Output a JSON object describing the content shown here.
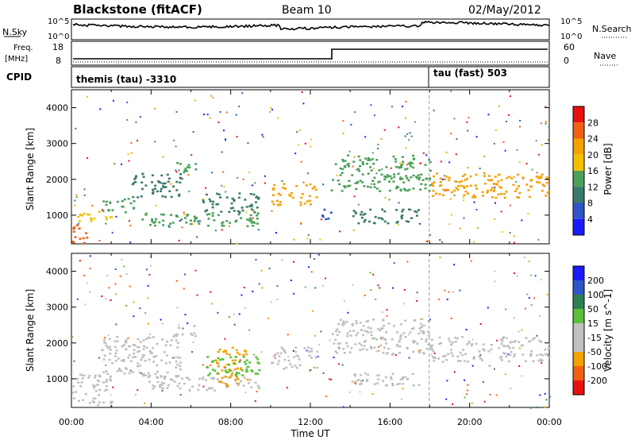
{
  "header": {
    "station": "Blackstone (fitACF)",
    "beam": "Beam 10",
    "date": "02/May/2012"
  },
  "top_panel": {
    "left_label": "N.Sky",
    "right_label": "N.Search",
    "left_ticks": [
      "10^5",
      "10^0"
    ],
    "right_ticks": [
      "10^5",
      "10^0"
    ]
  },
  "freq_panel": {
    "left_label_line1": "Freq.",
    "left_label_line2": "[MHz]",
    "right_label": "Nave",
    "left_ticks": [
      "18",
      "8"
    ],
    "right_ticks": [
      "60",
      "0"
    ]
  },
  "cpid": {
    "label": "CPID",
    "mode1": "themis (tau) -3310",
    "mode2": "tau (fast) 503"
  },
  "colors": {
    "power_scale": [
      "#1a1aff",
      "#2f55c8",
      "#3a7a6a",
      "#4da05a",
      "#f2c200",
      "#f5a000",
      "#f06010",
      "#e81010"
    ],
    "velocity_scale": [
      "#1a1aff",
      "#2f55c8",
      "#2e8050",
      "#5cc03a",
      "#c0c0c0",
      "#c0c0c0",
      "#f5a000",
      "#f06010",
      "#e81010"
    ]
  },
  "chart_data": [
    {
      "type": "line",
      "name": "sky-noise",
      "x": [
        0,
        1,
        2,
        3,
        4,
        5,
        6,
        7,
        8,
        9,
        10,
        11,
        12,
        13,
        14,
        15,
        16,
        17,
        18,
        19,
        20,
        21,
        22,
        23,
        24
      ],
      "y_label_scale": "log",
      "xlim": [
        0,
        24
      ]
    },
    {
      "type": "heatmap",
      "title": "",
      "xlabel": "Time UT",
      "ylabel": "Slant Range [km]",
      "xlim": [
        0,
        24
      ],
      "ylim": [
        200,
        4500
      ],
      "x_tick_labels": [
        "00:00",
        "04:00",
        "08:00",
        "12:00",
        "16:00",
        "20:00",
        "00:00"
      ],
      "y_tick_labels": [
        "1000",
        "2000",
        "3000",
        "4000"
      ],
      "colorbar_label": "Power [dB]",
      "colorbar_ticks": [
        "28",
        "24",
        "20",
        "16",
        "12",
        "8",
        "4"
      ],
      "regions": [
        {
          "t0": 0.0,
          "t1": 0.8,
          "r0": 250,
          "r1": 800,
          "level": 28
        },
        {
          "t0": 0.0,
          "t1": 2.0,
          "r0": 850,
          "r1": 1150,
          "level": 20
        },
        {
          "t0": 1.5,
          "t1": 3.2,
          "r0": 1100,
          "r1": 1500,
          "level": 16
        },
        {
          "t0": 3.0,
          "t1": 5.5,
          "r0": 1500,
          "r1": 2200,
          "level": 12
        },
        {
          "t0": 5.0,
          "t1": 6.3,
          "r0": 2200,
          "r1": 2500,
          "level": 16
        },
        {
          "t0": 3.5,
          "t1": 9.5,
          "r0": 700,
          "r1": 1100,
          "level": 16
        },
        {
          "t0": 6.5,
          "t1": 9.5,
          "r0": 1100,
          "r1": 1650,
          "level": 12
        },
        {
          "t0": 10.0,
          "t1": 12.3,
          "r0": 1300,
          "r1": 1900,
          "level": 24
        },
        {
          "t0": 12.5,
          "t1": 13.0,
          "r0": 800,
          "r1": 1200,
          "level": 8
        },
        {
          "t0": 13.0,
          "t1": 18.0,
          "r0": 1700,
          "r1": 2700,
          "level": 16
        },
        {
          "t0": 14.0,
          "t1": 17.5,
          "r0": 800,
          "r1": 1200,
          "level": 12
        },
        {
          "t0": 18.0,
          "t1": 24.0,
          "r0": 1500,
          "r1": 2200,
          "level": 24
        }
      ]
    },
    {
      "type": "heatmap",
      "title": "",
      "xlabel": "Time UT",
      "ylabel": "Slant Range [km]",
      "xlim": [
        0,
        24
      ],
      "ylim": [
        200,
        4500
      ],
      "x_tick_labels": [
        "00:00",
        "04:00",
        "08:00",
        "12:00",
        "16:00",
        "20:00",
        "00:00"
      ],
      "y_tick_labels": [
        "1000",
        "2000",
        "3000",
        "4000"
      ],
      "colorbar_label": "Velocity [m s^-1]",
      "colorbar_ticks": [
        "200",
        "100",
        "50",
        "15",
        "-15",
        "-50",
        "-100",
        "-200"
      ],
      "regions": [
        {
          "t0": 0.0,
          "t1": 2.0,
          "r0": 250,
          "r1": 1150,
          "level": 0
        },
        {
          "t0": 1.5,
          "t1": 5.5,
          "r0": 1100,
          "r1": 2200,
          "level": 0
        },
        {
          "t0": 5.0,
          "t1": 6.3,
          "r0": 2200,
          "r1": 2500,
          "level": 0
        },
        {
          "t0": 3.5,
          "t1": 9.5,
          "r0": 700,
          "r1": 1100,
          "level": 0
        },
        {
          "t0": 7.2,
          "t1": 8.8,
          "r0": 800,
          "r1": 1900,
          "level": -60
        },
        {
          "t0": 6.5,
          "t1": 9.5,
          "r0": 1100,
          "r1": 1650,
          "level": 30
        },
        {
          "t0": 10.0,
          "t1": 12.3,
          "r0": 1300,
          "r1": 1900,
          "level": 0
        },
        {
          "t0": 13.0,
          "t1": 18.0,
          "r0": 1700,
          "r1": 2700,
          "level": 0
        },
        {
          "t0": 14.0,
          "t1": 17.5,
          "r0": 800,
          "r1": 1200,
          "level": 0
        },
        {
          "t0": 18.0,
          "t1": 24.0,
          "r0": 1500,
          "r1": 2200,
          "level": 0
        }
      ]
    }
  ]
}
